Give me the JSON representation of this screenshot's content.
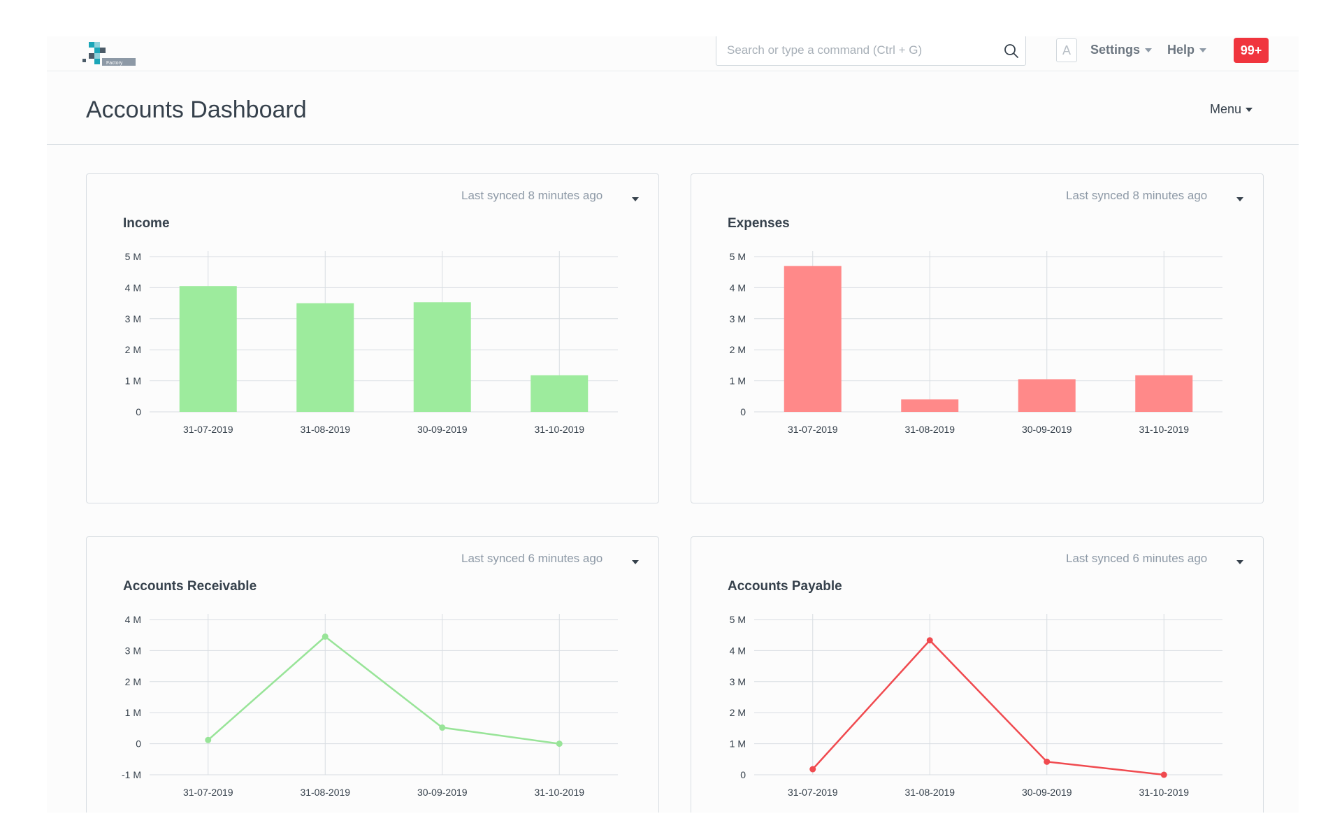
{
  "navbar": {
    "logo_text": "Factory",
    "search_placeholder": "Search or type a command (Ctrl + G)",
    "avatar_letter": "A",
    "settings_label": "Settings",
    "help_label": "Help",
    "notification_count": "99+"
  },
  "page": {
    "title": "Accounts Dashboard",
    "menu_label": "Menu"
  },
  "cards": [
    {
      "title": "Income",
      "sync_text": "Last synced 8 minutes ago"
    },
    {
      "title": "Expenses",
      "sync_text": "Last synced 8 minutes ago"
    },
    {
      "title": "Accounts Receivable",
      "sync_text": "Last synced 6 minutes ago"
    },
    {
      "title": "Accounts Payable",
      "sync_text": "Last synced 6 minutes ago"
    }
  ],
  "colors": {
    "green": "#9deb9d",
    "green_line": "#98e498",
    "red": "#ff8989",
    "red_line": "#f04a4f"
  },
  "chart_data": [
    {
      "type": "bar",
      "title": "Income",
      "categories": [
        "31-07-2019",
        "31-08-2019",
        "30-09-2019",
        "31-10-2019"
      ],
      "values": [
        4050000,
        3500000,
        3530000,
        1180000
      ],
      "ylim": [
        0,
        5000000
      ],
      "yticks": [
        "0",
        "1 M",
        "2 M",
        "3 M",
        "4 M",
        "5 M"
      ],
      "color": "#9deb9d",
      "grid": true
    },
    {
      "type": "bar",
      "title": "Expenses",
      "categories": [
        "31-07-2019",
        "31-08-2019",
        "30-09-2019",
        "31-10-2019"
      ],
      "values": [
        4700000,
        400000,
        1050000,
        1180000
      ],
      "ylim": [
        0,
        5000000
      ],
      "yticks": [
        "0",
        "1 M",
        "2 M",
        "3 M",
        "4 M",
        "5 M"
      ],
      "color": "#ff8989",
      "grid": true
    },
    {
      "type": "line",
      "title": "Accounts Receivable",
      "categories": [
        "31-07-2019",
        "31-08-2019",
        "30-09-2019",
        "31-10-2019"
      ],
      "values": [
        120000,
        3450000,
        520000,
        0
      ],
      "ylim": [
        -1000000,
        4000000
      ],
      "yticks": [
        "-1 M",
        "0",
        "1 M",
        "2 M",
        "3 M",
        "4 M"
      ],
      "color": "#98e498",
      "grid": true
    },
    {
      "type": "line",
      "title": "Accounts Payable",
      "categories": [
        "31-07-2019",
        "31-08-2019",
        "30-09-2019",
        "31-10-2019"
      ],
      "values": [
        180000,
        4330000,
        420000,
        0
      ],
      "ylim": [
        0,
        5000000
      ],
      "yticks": [
        "0",
        "1 M",
        "2 M",
        "3 M",
        "4 M",
        "5 M"
      ],
      "color": "#f04a4f",
      "grid": true
    }
  ]
}
